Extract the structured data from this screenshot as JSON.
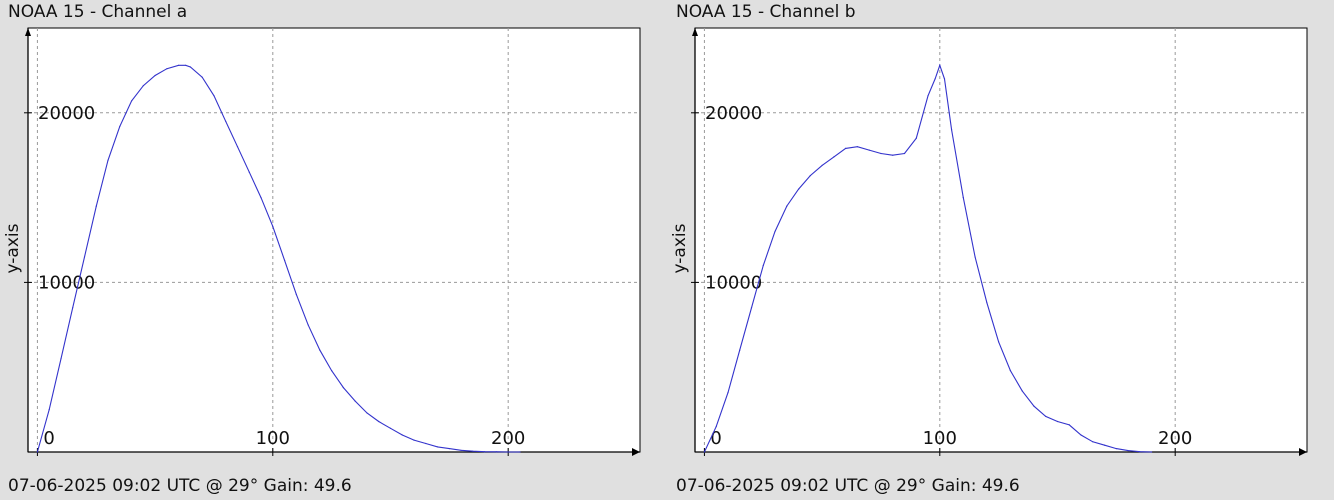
{
  "panels": [
    {
      "title": "NOAA 15 - Channel a",
      "footer": "07-06-2025 09:02 UTC @ 29° Gain: 49.6"
    },
    {
      "title": "NOAA 15 - Channel b",
      "footer": "07-06-2025 09:02 UTC @ 29° Gain: 49.6"
    }
  ],
  "colors": {
    "background": "#e0e0e0",
    "plot_background": "#ffffff",
    "series": "#3333cc",
    "grid": "#9a9a9a"
  },
  "chart_data": [
    {
      "type": "line",
      "title": "NOAA 15 - Channel a",
      "xlabel": "",
      "ylabel": "y-axis",
      "xlim": [
        -4,
        256
      ],
      "ylim": [
        0,
        25000
      ],
      "x_ticks": [
        0,
        100,
        200
      ],
      "y_ticks": [
        10000,
        20000
      ],
      "grid": true,
      "series": [
        {
          "x": [
            0,
            5,
            10,
            15,
            20,
            25,
            30,
            35,
            40,
            45,
            50,
            55,
            60,
            63,
            65,
            70,
            75,
            80,
            85,
            90,
            95,
            100,
            105,
            110,
            115,
            120,
            125,
            130,
            135,
            140,
            145,
            150,
            155,
            160,
            165,
            170,
            175,
            180,
            185,
            190,
            195,
            200,
            205
          ],
          "values": [
            0,
            2500,
            5500,
            8500,
            11500,
            14500,
            17200,
            19200,
            20700,
            21600,
            22200,
            22600,
            22800,
            22800,
            22700,
            22100,
            21000,
            19500,
            18000,
            16500,
            15000,
            13300,
            11300,
            9300,
            7500,
            6000,
            4800,
            3800,
            3000,
            2300,
            1800,
            1400,
            1000,
            700,
            500,
            300,
            200,
            100,
            50,
            20,
            10,
            0,
            0
          ]
        }
      ]
    },
    {
      "type": "line",
      "title": "NOAA 15 - Channel b",
      "xlabel": "",
      "ylabel": "y-axis",
      "xlim": [
        -4,
        256
      ],
      "ylim": [
        0,
        25000
      ],
      "x_ticks": [
        0,
        100,
        200
      ],
      "y_ticks": [
        10000,
        20000
      ],
      "grid": true,
      "series": [
        {
          "x": [
            0,
            5,
            10,
            15,
            20,
            25,
            30,
            35,
            40,
            45,
            50,
            55,
            60,
            65,
            70,
            75,
            80,
            85,
            90,
            95,
            98,
            100,
            102,
            105,
            110,
            115,
            120,
            125,
            130,
            135,
            140,
            145,
            150,
            155,
            160,
            165,
            170,
            175,
            180,
            185,
            190
          ],
          "values": [
            0,
            1500,
            3500,
            6000,
            8500,
            11000,
            13000,
            14500,
            15500,
            16300,
            16900,
            17400,
            17900,
            18000,
            17800,
            17600,
            17500,
            17600,
            18500,
            21000,
            22000,
            22800,
            22000,
            19000,
            15000,
            11500,
            8800,
            6500,
            4800,
            3600,
            2700,
            2100,
            1800,
            1600,
            1000,
            600,
            400,
            200,
            80,
            20,
            0
          ]
        }
      ]
    }
  ]
}
